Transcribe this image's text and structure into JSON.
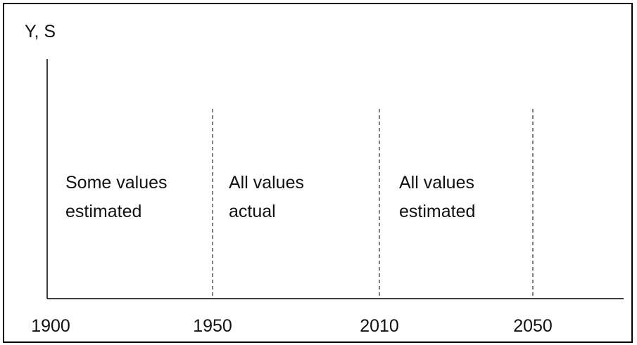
{
  "axis_label": "Y, S",
  "x_labels": [
    "1900",
    "1950",
    "2010",
    "2050"
  ],
  "regions": [
    {
      "lines": [
        "Some values",
        "estimated"
      ]
    },
    {
      "lines": [
        "All values",
        "actual"
      ]
    },
    {
      "lines": [
        "All values",
        "estimated"
      ]
    }
  ]
}
